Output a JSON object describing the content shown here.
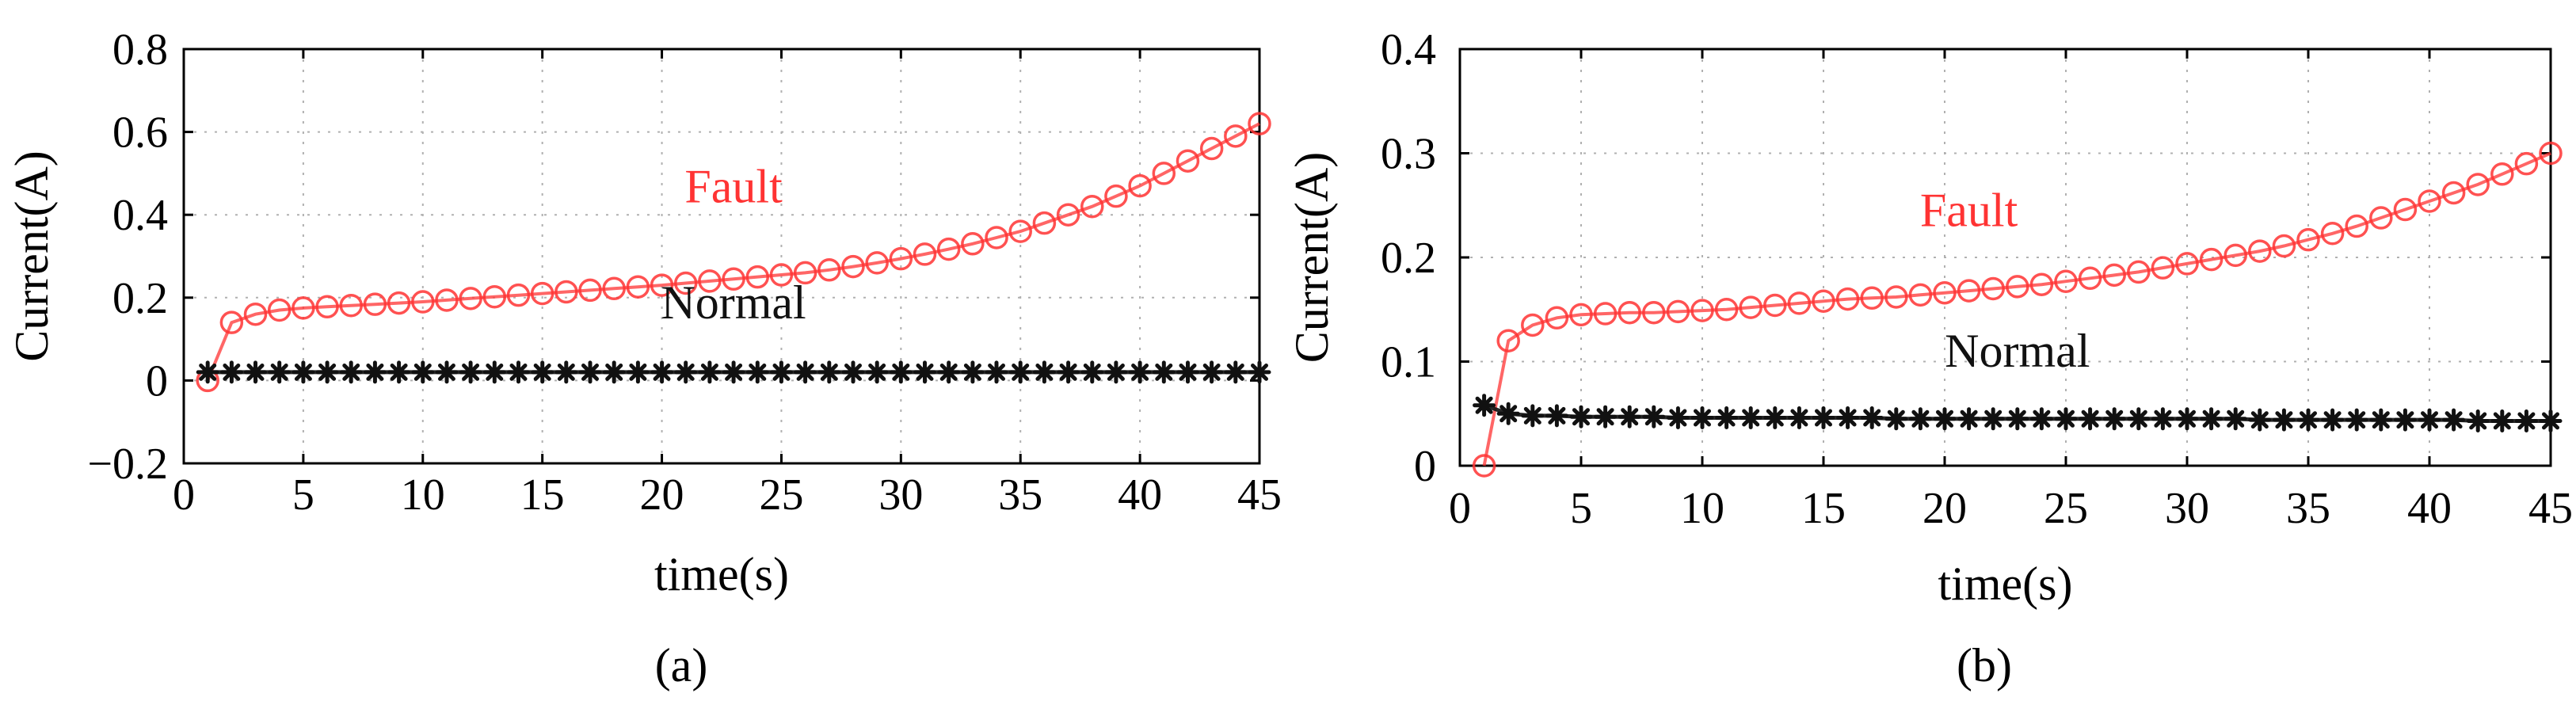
{
  "colors": {
    "fault": "#ff3333",
    "normal": "#111111",
    "axis": "#000000",
    "grid": "#b0b0b0"
  },
  "chart_data": [
    {
      "type": "line",
      "panel_label": "(a)",
      "xlabel": "time(s)",
      "ylabel": "Current(A)",
      "xlim": [
        0,
        45
      ],
      "ylim": [
        -0.2,
        0.8
      ],
      "xticks": [
        0,
        5,
        10,
        15,
        20,
        25,
        30,
        35,
        40,
        45
      ],
      "yticks": [
        -0.2,
        0,
        0.2,
        0.4,
        0.6,
        0.8
      ],
      "ytick_labels": [
        "−0.2",
        "0",
        "0.2",
        "0.4",
        "0.6",
        "0.8"
      ],
      "grid": true,
      "annotations": [
        {
          "text": "Fault",
          "series": "Fault",
          "x": 23,
          "y": 0.43
        },
        {
          "text": "Normal",
          "series": "Normal",
          "x": 23,
          "y": 0.15
        }
      ],
      "series": [
        {
          "name": "Fault",
          "marker": "circle",
          "x": [
            1,
            2,
            3,
            4,
            5,
            6,
            7,
            8,
            9,
            10,
            11,
            12,
            13,
            14,
            15,
            16,
            17,
            18,
            19,
            20,
            21,
            22,
            23,
            24,
            25,
            26,
            27,
            28,
            29,
            30,
            31,
            32,
            33,
            34,
            35,
            36,
            37,
            38,
            39,
            40,
            41,
            42,
            43,
            44,
            45
          ],
          "y": [
            0.0,
            0.14,
            0.16,
            0.17,
            0.175,
            0.178,
            0.181,
            0.184,
            0.187,
            0.19,
            0.194,
            0.198,
            0.202,
            0.206,
            0.21,
            0.214,
            0.218,
            0.222,
            0.226,
            0.23,
            0.235,
            0.24,
            0.245,
            0.25,
            0.255,
            0.26,
            0.267,
            0.275,
            0.284,
            0.294,
            0.305,
            0.317,
            0.33,
            0.345,
            0.36,
            0.38,
            0.4,
            0.42,
            0.445,
            0.47,
            0.5,
            0.53,
            0.56,
            0.59,
            0.62
          ]
        },
        {
          "name": "Normal",
          "marker": "star",
          "x": [
            1,
            2,
            3,
            4,
            5,
            6,
            7,
            8,
            9,
            10,
            11,
            12,
            13,
            14,
            15,
            16,
            17,
            18,
            19,
            20,
            21,
            22,
            23,
            24,
            25,
            26,
            27,
            28,
            29,
            30,
            31,
            32,
            33,
            34,
            35,
            36,
            37,
            38,
            39,
            40,
            41,
            42,
            43,
            44,
            45
          ],
          "y": [
            0.02,
            0.02,
            0.02,
            0.02,
            0.02,
            0.02,
            0.02,
            0.02,
            0.02,
            0.02,
            0.02,
            0.02,
            0.02,
            0.02,
            0.02,
            0.02,
            0.02,
            0.02,
            0.02,
            0.02,
            0.02,
            0.02,
            0.02,
            0.02,
            0.02,
            0.02,
            0.02,
            0.02,
            0.02,
            0.02,
            0.02,
            0.02,
            0.02,
            0.02,
            0.02,
            0.02,
            0.02,
            0.02,
            0.02,
            0.02,
            0.02,
            0.02,
            0.02,
            0.02,
            0.02
          ]
        }
      ]
    },
    {
      "type": "line",
      "panel_label": "(b)",
      "xlabel": "time(s)",
      "ylabel": "Current(A)",
      "xlim": [
        0,
        45
      ],
      "ylim": [
        0,
        0.4
      ],
      "xticks": [
        0,
        5,
        10,
        15,
        20,
        25,
        30,
        35,
        40,
        45
      ],
      "yticks": [
        0,
        0.1,
        0.2,
        0.3,
        0.4
      ],
      "ytick_labels": [
        "0",
        "0.1",
        "0.2",
        "0.3",
        "0.4"
      ],
      "grid": true,
      "annotations": [
        {
          "text": "Fault",
          "series": "Fault",
          "x": 21,
          "y": 0.23
        },
        {
          "text": "Normal",
          "series": "Normal",
          "x": 23,
          "y": 0.095
        }
      ],
      "series": [
        {
          "name": "Fault",
          "marker": "circle",
          "x": [
            1,
            2,
            3,
            4,
            5,
            6,
            7,
            8,
            9,
            10,
            11,
            12,
            13,
            14,
            15,
            16,
            17,
            18,
            19,
            20,
            21,
            22,
            23,
            24,
            25,
            26,
            27,
            28,
            29,
            30,
            31,
            32,
            33,
            34,
            35,
            36,
            37,
            38,
            39,
            40,
            41,
            42,
            43,
            44,
            45
          ],
          "y": [
            0.0,
            0.12,
            0.135,
            0.142,
            0.145,
            0.146,
            0.147,
            0.147,
            0.148,
            0.149,
            0.15,
            0.152,
            0.154,
            0.156,
            0.158,
            0.16,
            0.161,
            0.162,
            0.164,
            0.166,
            0.168,
            0.17,
            0.172,
            0.174,
            0.177,
            0.18,
            0.183,
            0.186,
            0.19,
            0.194,
            0.198,
            0.202,
            0.206,
            0.211,
            0.217,
            0.223,
            0.23,
            0.238,
            0.246,
            0.254,
            0.262,
            0.27,
            0.28,
            0.29,
            0.3
          ]
        },
        {
          "name": "Normal",
          "marker": "star",
          "x": [
            1,
            2,
            3,
            4,
            5,
            6,
            7,
            8,
            9,
            10,
            11,
            12,
            13,
            14,
            15,
            16,
            17,
            18,
            19,
            20,
            21,
            22,
            23,
            24,
            25,
            26,
            27,
            28,
            29,
            30,
            31,
            32,
            33,
            34,
            35,
            36,
            37,
            38,
            39,
            40,
            41,
            42,
            43,
            44,
            45
          ],
          "y": [
            0.058,
            0.05,
            0.048,
            0.048,
            0.047,
            0.047,
            0.047,
            0.047,
            0.046,
            0.046,
            0.046,
            0.046,
            0.046,
            0.046,
            0.046,
            0.046,
            0.046,
            0.045,
            0.045,
            0.045,
            0.045,
            0.045,
            0.045,
            0.045,
            0.045,
            0.045,
            0.045,
            0.045,
            0.045,
            0.045,
            0.045,
            0.045,
            0.044,
            0.044,
            0.044,
            0.044,
            0.044,
            0.044,
            0.044,
            0.044,
            0.044,
            0.043,
            0.043,
            0.043,
            0.043
          ]
        }
      ]
    }
  ]
}
